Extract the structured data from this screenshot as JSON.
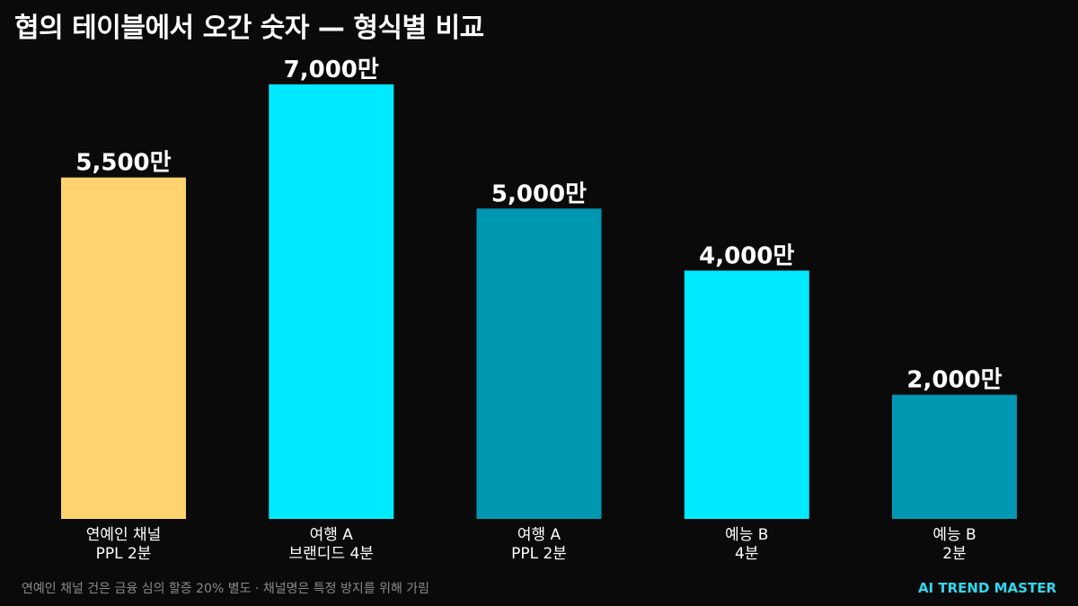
{
  "title": "협의 테이블에서 오간 숫자 — 형식별 비교",
  "footnote": "연예인 채널 건은 금융 심의 할증 20% 별도 · 채널명은 특정 방지를 위해 가림",
  "brand": "AI TREND MASTER",
  "chart_data": {
    "type": "bar",
    "title": "협의 테이블에서 오간 숫자 — 형식별 비교",
    "xlabel": "",
    "ylabel": "",
    "categories": [
      [
        "연예인 채널",
        "PPL 2분"
      ],
      [
        "여행 A",
        "브랜디드 4분"
      ],
      [
        "여행 A",
        "PPL 2분"
      ],
      [
        "예능 B",
        "4분"
      ],
      [
        "예능 B",
        "2분"
      ]
    ],
    "values": [
      5500,
      7000,
      5000,
      4000,
      2000
    ],
    "value_labels": [
      "5,500만",
      "7,000만",
      "5,000만",
      "4,000만",
      "2,000만"
    ],
    "bar_colors": [
      "#ffd36e",
      "#00eaff",
      "#0097b2",
      "#00eaff",
      "#0097b2"
    ],
    "ylim": [
      0,
      7000
    ],
    "grid": false,
    "legend": "none"
  },
  "colors": {
    "background": "#0a0a0a",
    "brand": "#2fd8f0",
    "footnote": "#8a8a8a"
  }
}
